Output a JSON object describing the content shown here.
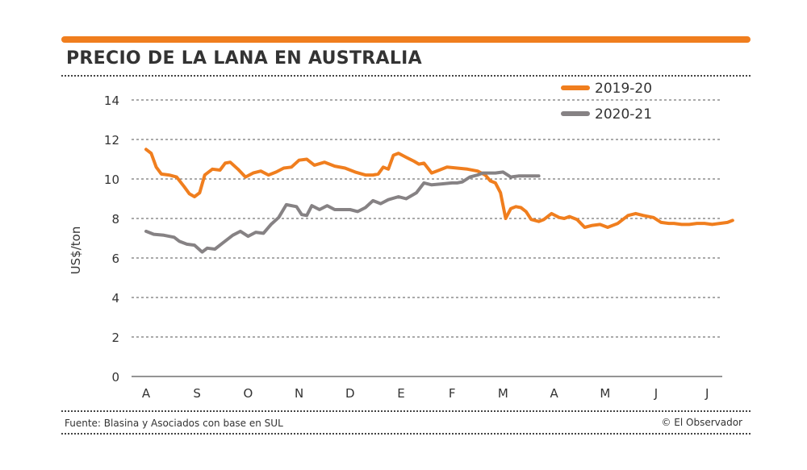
{
  "header": {
    "title": "PRECIO DE LA LANA EN AUSTRALIA"
  },
  "footer": {
    "source": "Fuente: Blasina y Asociados con base en SUL",
    "copyright": "© El Observador"
  },
  "colors": {
    "accent": "#F07E1E",
    "series_2019": "#F07E1E",
    "series_2020": "#868284",
    "grid": "#555555"
  },
  "chart_data": {
    "type": "line",
    "title": "PRECIO DE LA LANA EN AUSTRALIA",
    "xlabel": "",
    "ylabel": "US$/ton",
    "ylim": [
      0,
      14
    ],
    "yticks": [
      0,
      2,
      4,
      6,
      8,
      10,
      12,
      14
    ],
    "xlim": [
      0,
      11.5
    ],
    "categories": [
      "A",
      "S",
      "O",
      "N",
      "D",
      "E",
      "F",
      "M",
      "A",
      "M",
      "J",
      "J"
    ],
    "grid": true,
    "legend_position": "top-right",
    "series": [
      {
        "name": "2019-20",
        "color": "#F07E1E",
        "x": [
          0.0,
          0.1,
          0.2,
          0.3,
          0.45,
          0.6,
          0.75,
          0.85,
          0.95,
          1.05,
          1.15,
          1.3,
          1.45,
          1.55,
          1.65,
          1.8,
          1.95,
          2.1,
          2.25,
          2.4,
          2.55,
          2.7,
          2.85,
          3.0,
          3.15,
          3.3,
          3.5,
          3.7,
          3.9,
          4.1,
          4.3,
          4.45,
          4.55,
          4.65,
          4.75,
          4.85,
          4.95,
          5.1,
          5.25,
          5.35,
          5.45,
          5.6,
          5.75,
          5.9,
          6.1,
          6.3,
          6.5,
          6.65,
          6.75,
          6.85,
          6.95,
          7.05,
          7.15,
          7.25,
          7.35,
          7.45,
          7.55,
          7.7,
          7.8,
          7.95,
          8.1,
          8.2,
          8.3,
          8.45,
          8.6,
          8.75,
          8.9,
          9.05,
          9.25,
          9.45,
          9.6,
          9.75,
          9.95,
          10.1,
          10.25,
          10.35,
          10.5,
          10.65,
          10.8,
          10.95,
          11.1,
          11.25,
          11.4,
          11.5
        ],
        "values": [
          11.5,
          11.3,
          10.6,
          10.25,
          10.2,
          10.1,
          9.6,
          9.25,
          9.1,
          9.3,
          10.2,
          10.5,
          10.45,
          10.8,
          10.85,
          10.5,
          10.1,
          10.3,
          10.4,
          10.2,
          10.35,
          10.55,
          10.6,
          10.95,
          11.0,
          10.7,
          10.85,
          10.65,
          10.55,
          10.35,
          10.2,
          10.2,
          10.25,
          10.6,
          10.5,
          11.2,
          11.3,
          11.1,
          10.9,
          10.75,
          10.8,
          10.3,
          10.45,
          10.6,
          10.55,
          10.5,
          10.4,
          10.2,
          9.9,
          9.8,
          9.3,
          8.0,
          8.5,
          8.6,
          8.55,
          8.35,
          7.95,
          7.85,
          7.95,
          8.25,
          8.05,
          8.0,
          8.1,
          7.95,
          7.55,
          7.65,
          7.7,
          7.55,
          7.75,
          8.15,
          8.25,
          8.15,
          8.05,
          7.8,
          7.75,
          7.75,
          7.7,
          7.7,
          7.75,
          7.75,
          7.7,
          7.75,
          7.8,
          7.9
        ]
      },
      {
        "name": "2020-21",
        "color": "#868284",
        "x": [
          0.0,
          0.15,
          0.35,
          0.55,
          0.65,
          0.8,
          0.95,
          1.1,
          1.2,
          1.35,
          1.5,
          1.7,
          1.85,
          2.0,
          2.15,
          2.3,
          2.45,
          2.6,
          2.75,
          2.95,
          3.05,
          3.15,
          3.25,
          3.4,
          3.55,
          3.7,
          3.85,
          4.0,
          4.15,
          4.3,
          4.45,
          4.6,
          4.75,
          4.95,
          5.1,
          5.3,
          5.45,
          5.6,
          5.8,
          6.0,
          6.1,
          6.2,
          6.35,
          6.5,
          6.6,
          6.75,
          6.85,
          7.0,
          7.15,
          7.3,
          7.45,
          7.6,
          7.7
        ],
        "values": [
          7.35,
          7.2,
          7.15,
          7.05,
          6.85,
          6.7,
          6.65,
          6.3,
          6.5,
          6.45,
          6.75,
          7.15,
          7.35,
          7.1,
          7.3,
          7.25,
          7.7,
          8.05,
          8.7,
          8.6,
          8.2,
          8.15,
          8.65,
          8.45,
          8.65,
          8.45,
          8.45,
          8.45,
          8.35,
          8.55,
          8.9,
          8.75,
          8.95,
          9.1,
          9.0,
          9.3,
          9.8,
          9.7,
          9.75,
          9.8,
          9.8,
          9.85,
          10.1,
          10.2,
          10.3,
          10.3,
          10.3,
          10.35,
          10.1,
          10.15,
          10.15,
          10.15,
          10.15
        ]
      }
    ]
  }
}
